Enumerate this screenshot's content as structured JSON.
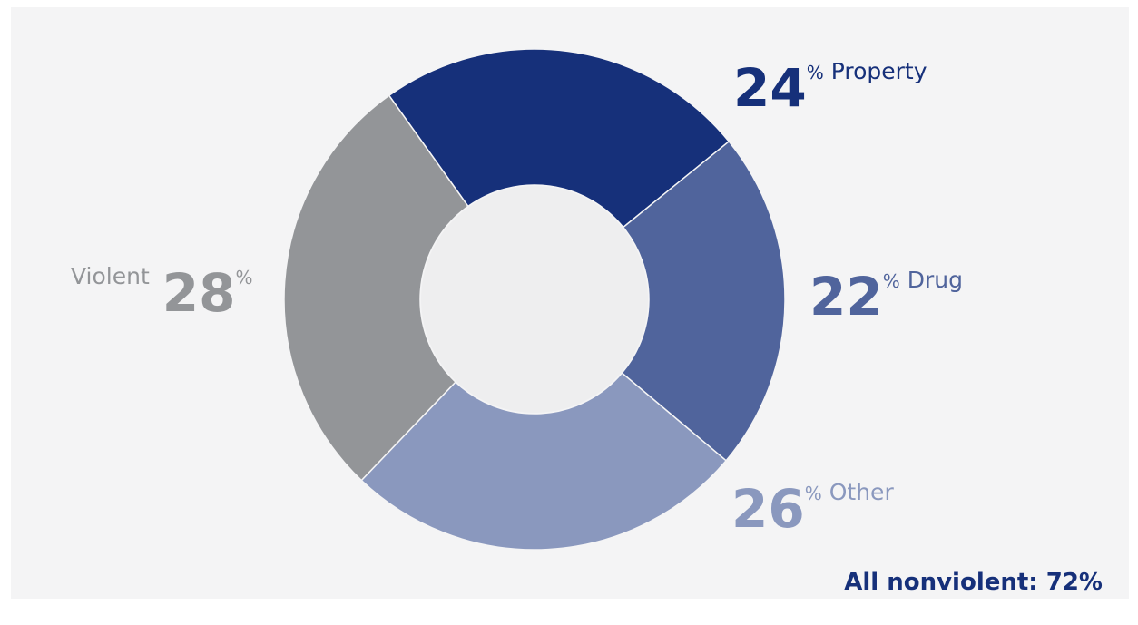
{
  "chart_data": {
    "type": "donut",
    "categories": [
      "Property",
      "Drug",
      "Other",
      "Violent"
    ],
    "values": [
      24,
      22,
      26,
      28
    ],
    "value_suffix": "%",
    "colors": [
      "#16307a",
      "#50649c",
      "#8a98be",
      "#939598"
    ],
    "annotation": "All nonviolent: 72%"
  }
}
